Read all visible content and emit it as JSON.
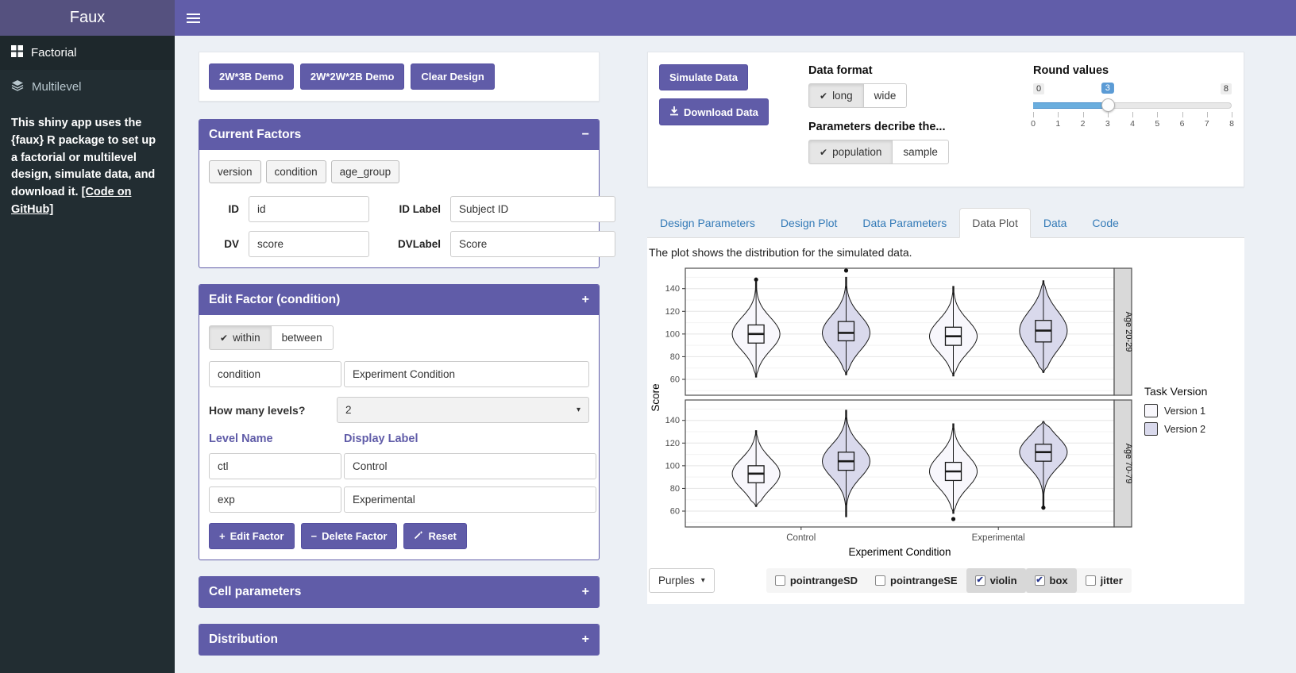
{
  "navbar": {
    "title": "Faux"
  },
  "sidebar": {
    "items": [
      {
        "label": "Factorial",
        "icon": "grid-icon",
        "active": true
      },
      {
        "label": "Multilevel",
        "icon": "layers-icon",
        "active": false
      }
    ],
    "description": "This shiny app uses the {faux} R package to set up a factorial or multilevel design, simulate data, and download it.",
    "github_link": "[Code on GitHub]"
  },
  "design": {
    "demo_buttons": [
      "2W*3B Demo",
      "2W*2W*2B Demo",
      "Clear Design"
    ],
    "current_factors": {
      "title": "Current Factors",
      "expanded": true,
      "factors": [
        "version",
        "condition",
        "age_group"
      ],
      "id_label": "ID",
      "id_value": "id",
      "idlabel_label": "ID Label",
      "idlabel_value": "Subject ID",
      "dv_label": "DV",
      "dv_value": "score",
      "dvlabel_label": "DVLabel",
      "dvlabel_value": "Score"
    },
    "edit_factor": {
      "title": "Edit Factor (condition)",
      "within_label": "within",
      "between_label": "between",
      "within_active": true,
      "name_value": "condition",
      "display_value": "Experiment Condition",
      "levels_question": "How many levels?",
      "levels_value": "2",
      "level_name_header": "Level Name",
      "display_label_header": "Display Label",
      "levels": [
        {
          "name": "ctl",
          "label": "Control"
        },
        {
          "name": "exp",
          "label": "Experimental"
        }
      ],
      "edit_button": "Edit Factor",
      "delete_button": "Delete Factor",
      "reset_button": "Reset"
    },
    "cell_parameters_title": "Cell parameters",
    "distribution_title": "Distribution"
  },
  "simulate": {
    "simulate_button": "Simulate Data",
    "download_button": "Download Data",
    "data_format_label": "Data format",
    "long_label": "long",
    "wide_label": "wide",
    "params_label": "Parameters decribe the...",
    "population_label": "population",
    "sample_label": "sample",
    "round_label": "Round values",
    "slider": {
      "min": "0",
      "max": "8",
      "value": "3",
      "ticks": [
        "0",
        "1",
        "2",
        "3",
        "4",
        "5",
        "6",
        "7",
        "8"
      ]
    }
  },
  "tabs": [
    {
      "label": "Design Parameters",
      "active": false
    },
    {
      "label": "Design Plot",
      "active": false
    },
    {
      "label": "Data Parameters",
      "active": false
    },
    {
      "label": "Data Plot",
      "active": true
    },
    {
      "label": "Data",
      "active": false
    },
    {
      "label": "Code",
      "active": false
    }
  ],
  "plot_caption": "The plot shows the distribution for the simulated data.",
  "chart_data": {
    "type": "violin",
    "xlabel": "Experiment Condition",
    "ylabel": "Score",
    "x_categories": [
      "Control",
      "Experimental"
    ],
    "facets": [
      "Age 20-29",
      "Age 70-79"
    ],
    "legend_title": "Task Version",
    "series": [
      {
        "name": "Version 1",
        "fill": "#f8f7fc"
      },
      {
        "name": "Version 2",
        "fill": "#d9d9ec"
      }
    ],
    "yticks": [
      60,
      80,
      100,
      120,
      140
    ],
    "ylim": [
      46,
      158
    ],
    "violins": [
      {
        "facet": "Age 20-29",
        "x": "Control",
        "series": "Version 1",
        "lo": 62,
        "q1": 92,
        "median": 100,
        "q3": 108,
        "hi": 146,
        "outliers": [
          148
        ]
      },
      {
        "facet": "Age 20-29",
        "x": "Control",
        "series": "Version 2",
        "lo": 64,
        "q1": 94,
        "median": 101,
        "q3": 111,
        "hi": 150,
        "outliers": [
          156
        ]
      },
      {
        "facet": "Age 20-29",
        "x": "Experimental",
        "series": "Version 1",
        "lo": 63,
        "q1": 90,
        "median": 98,
        "q3": 106,
        "hi": 142,
        "outliers": []
      },
      {
        "facet": "Age 20-29",
        "x": "Experimental",
        "series": "Version 2",
        "lo": 66,
        "q1": 93,
        "median": 103,
        "q3": 112,
        "hi": 147,
        "outliers": []
      },
      {
        "facet": "Age 70-79",
        "x": "Control",
        "series": "Version 1",
        "lo": 64,
        "q1": 85,
        "median": 93,
        "q3": 100,
        "hi": 131,
        "outliers": []
      },
      {
        "facet": "Age 70-79",
        "x": "Control",
        "series": "Version 2",
        "lo": 55,
        "q1": 96,
        "median": 104,
        "q3": 112,
        "hi": 149,
        "outliers": []
      },
      {
        "facet": "Age 70-79",
        "x": "Experimental",
        "series": "Version 1",
        "lo": 58,
        "q1": 87,
        "median": 95,
        "q3": 103,
        "hi": 137,
        "outliers": [
          53
        ]
      },
      {
        "facet": "Age 70-79",
        "x": "Experimental",
        "series": "Version 2",
        "lo": 64,
        "q1": 104,
        "median": 112,
        "q3": 119,
        "hi": 139,
        "outliers": [
          63
        ]
      }
    ]
  },
  "plot_controls": {
    "palette": "Purples",
    "checkboxes": [
      {
        "label": "pointrangeSD",
        "checked": false
      },
      {
        "label": "pointrangeSE",
        "checked": false
      },
      {
        "label": "violin",
        "checked": true
      },
      {
        "label": "box",
        "checked": true
      },
      {
        "label": "jitter",
        "checked": false
      }
    ]
  }
}
